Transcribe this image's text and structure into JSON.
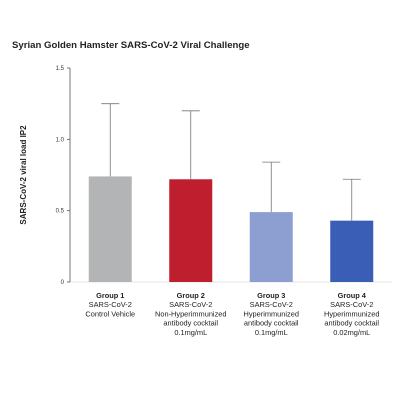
{
  "chart_data": {
    "type": "bar",
    "title": "Syrian Golden Hamster SARS-CoV-2 Viral Challenge",
    "ylabel": "SARS-CoV-2 viral load IP2",
    "xlabel": "",
    "ylim": [
      0,
      1.5
    ],
    "yticks": [
      "0",
      "0.5",
      "1.0",
      "1.5"
    ],
    "grid": false,
    "error_bars": "upper",
    "categories": [
      [
        "Group 1",
        "SARS-CoV-2",
        "Control Vehicle"
      ],
      [
        "Group 2",
        "SARS-CoV-2",
        "Non-Hyperimmunized",
        "antibody cocktail",
        "0.1mg/mL"
      ],
      [
        "Group 3",
        "SARS-CoV-2",
        "Hyperimmunized",
        "antibody cocktail",
        "0.1mg/mL"
      ],
      [
        "Group 4",
        "SARS-CoV-2",
        "Hyperimmunized",
        "antibody cocktail",
        "0.02mg/mL"
      ]
    ],
    "values": [
      0.74,
      0.72,
      0.49,
      0.43
    ],
    "error_upper": [
      1.25,
      1.2,
      0.84,
      0.72
    ],
    "colors": [
      "#b3b4b6",
      "#be1e2d",
      "#8d9fd1",
      "#3a5db5"
    ]
  }
}
